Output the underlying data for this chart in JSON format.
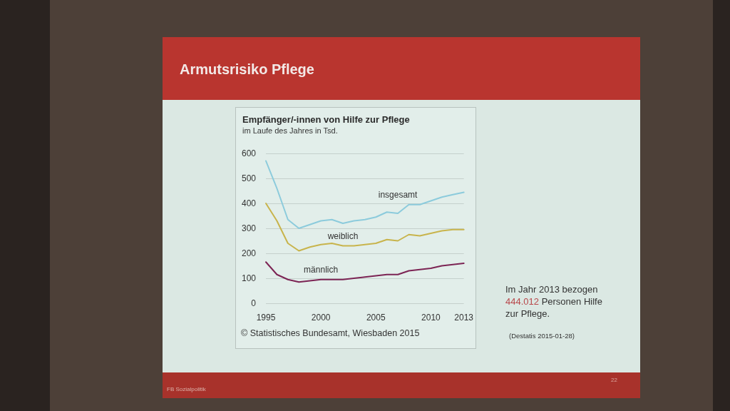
{
  "chart_data": {
    "type": "line",
    "title": "Empfänger/-innen von Hilfe zur Pflege",
    "subtitle": "im Laufe des Jahres in Tsd.",
    "x": [
      1995,
      1996,
      1997,
      1998,
      1999,
      2000,
      2001,
      2002,
      2003,
      2004,
      2005,
      2006,
      2007,
      2008,
      2009,
      2010,
      2011,
      2012,
      2013
    ],
    "xlim": [
      1995,
      2013
    ],
    "xticks": [
      1995,
      2000,
      2005,
      2010,
      2013
    ],
    "ylim": [
      0,
      600
    ],
    "yticks": [
      0,
      100,
      200,
      300,
      400,
      500,
      600
    ],
    "grid": "y",
    "series": [
      {
        "name": "insgesamt",
        "color": "#8ccbdc",
        "values": [
          570,
          460,
          335,
          300,
          315,
          330,
          335,
          320,
          330,
          335,
          345,
          365,
          360,
          395,
          395,
          410,
          425,
          435,
          444
        ]
      },
      {
        "name": "weiblich",
        "color": "#c8b44c",
        "values": [
          400,
          330,
          240,
          210,
          225,
          235,
          240,
          230,
          230,
          235,
          240,
          255,
          250,
          275,
          270,
          280,
          290,
          295,
          295
        ]
      },
      {
        "name": "männlich",
        "color": "#7c2454",
        "values": [
          165,
          115,
          95,
          85,
          90,
          95,
          95,
          95,
          100,
          105,
          110,
          115,
          115,
          130,
          135,
          140,
          150,
          155,
          160
        ]
      }
    ],
    "annotations": [
      "Armutsrisiko Pflege",
      "© Statistisches Bundesamt, Wiesbaden 2015",
      "Im Jahr 2013 bezogen 444.012 Personen Hilfe zur Pflege.",
      "(Destatis 2015-01-28)",
      "FB Sozialpolitik",
      "22"
    ]
  }
}
